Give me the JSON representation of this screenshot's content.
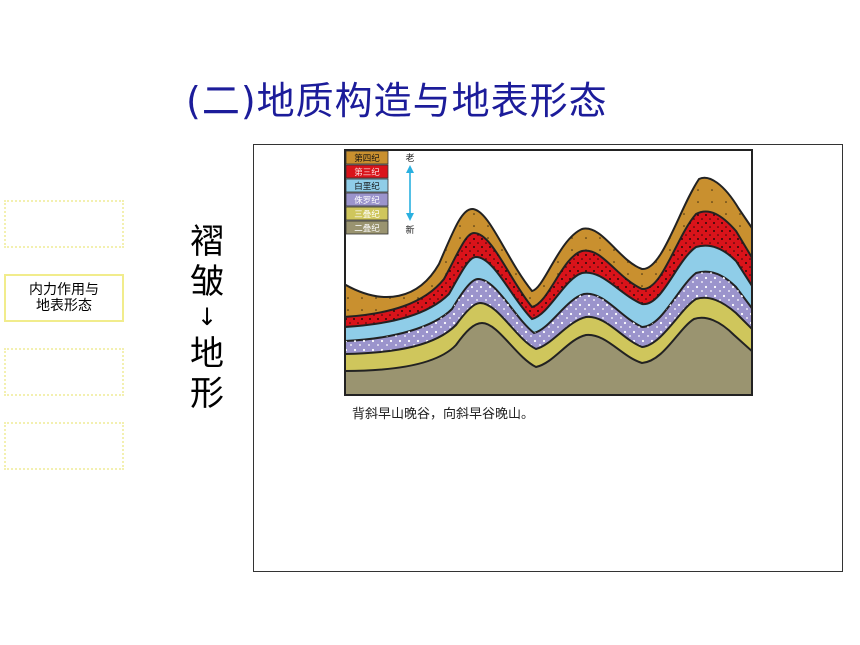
{
  "title": "(二)地质构造与地表形态",
  "nav": {
    "items": [
      {
        "label": ""
      },
      {
        "label": "内力作用与\n地表形态",
        "line1": "内力作用与",
        "line2": "地表形态"
      },
      {
        "label": ""
      },
      {
        "label": ""
      }
    ]
  },
  "vertical": {
    "top": "褶皱",
    "arrow": "↓",
    "bottom": "地形"
  },
  "diagram": {
    "legend": [
      {
        "label": "第四纪",
        "color": "#c9902f"
      },
      {
        "label": "第三纪",
        "color": "#d9131a"
      },
      {
        "label": "白垩纪",
        "color": "#8fcde8"
      },
      {
        "label": "侏罗纪",
        "color": "#9b94cc"
      },
      {
        "label": "三叠纪",
        "color": "#cfc65c"
      },
      {
        "label": "二叠纪",
        "color": "#9a9470"
      }
    ],
    "age_top": "老",
    "age_bottom": "新",
    "caption": "背斜早山晚谷，向斜早谷晚山。"
  }
}
